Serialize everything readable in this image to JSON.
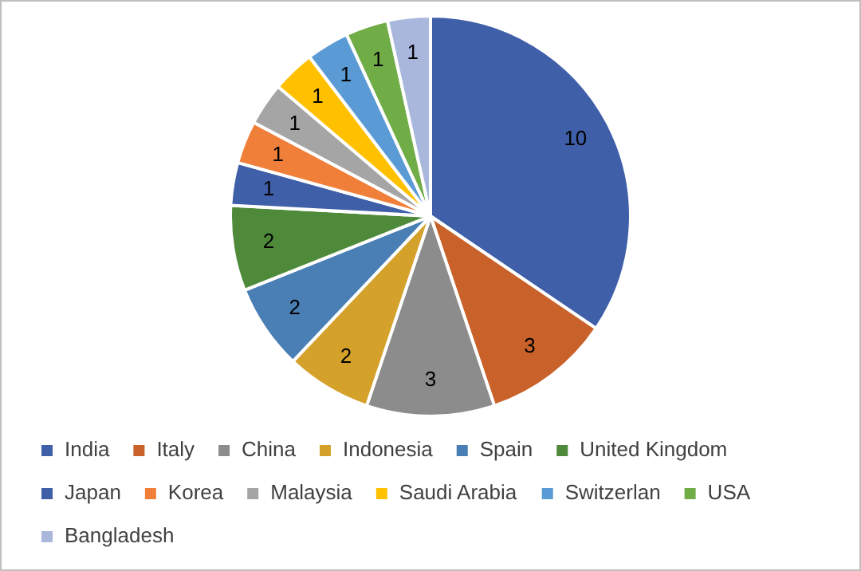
{
  "chart_data": {
    "type": "pie",
    "categories": [
      "India",
      "Italy",
      "China",
      "Indonesia",
      "Spain",
      "United Kingdom",
      "Japan",
      "Korea",
      "Malaysia",
      "Saudi Arabia",
      "Switzerlan",
      "USA",
      "Bangladesh"
    ],
    "values": [
      10,
      3,
      3,
      2,
      2,
      2,
      1,
      1,
      1,
      1,
      1,
      1,
      1
    ],
    "colors": [
      "#3f5fa8",
      "#c9622a",
      "#8c8c8c",
      "#d4a12a",
      "#4a7fb5",
      "#4e8a3a",
      "#3f5fa8",
      "#f07f3a",
      "#a5a5a5",
      "#ffc000",
      "#5b9bd5",
      "#70ad47",
      "#a9b7dc"
    ],
    "data_labels": true,
    "legend": "bottom"
  }
}
